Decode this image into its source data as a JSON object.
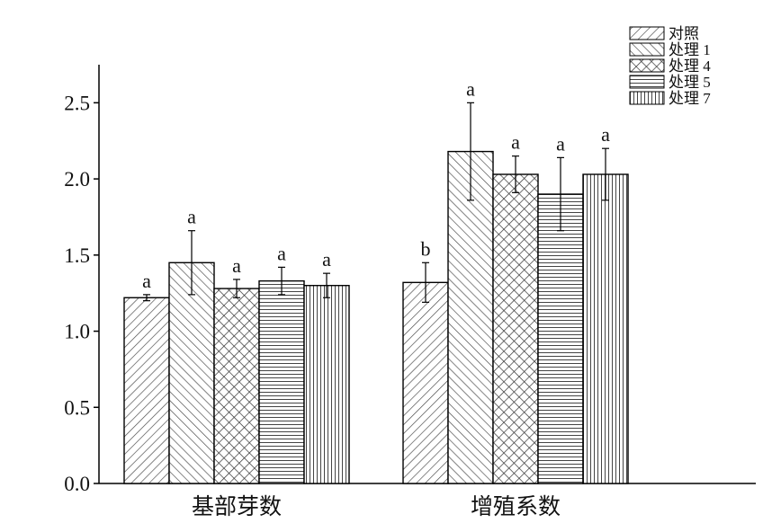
{
  "chart_data": {
    "type": "bar",
    "categories": [
      "基部芽数",
      "增殖系数"
    ],
    "series": [
      {
        "name": "对照",
        "values": [
          1.22,
          1.32
        ],
        "errors": [
          0.02,
          0.13
        ],
        "letters": [
          "a",
          "b"
        ]
      },
      {
        "name": "处理 1",
        "values": [
          1.45,
          2.18
        ],
        "errors": [
          0.21,
          0.32
        ],
        "letters": [
          "a",
          "a"
        ]
      },
      {
        "name": "处理 4",
        "values": [
          1.28,
          2.03
        ],
        "errors": [
          0.06,
          0.12
        ],
        "letters": [
          "a",
          "a"
        ]
      },
      {
        "name": "处理 5",
        "values": [
          1.33,
          1.9
        ],
        "errors": [
          0.09,
          0.24
        ],
        "letters": [
          "a",
          "a"
        ]
      },
      {
        "name": "处理 7",
        "values": [
          1.3,
          2.03
        ],
        "errors": [
          0.08,
          0.17
        ],
        "letters": [
          "a",
          "a"
        ]
      }
    ],
    "ylim": [
      0,
      2.75
    ],
    "yticks": [
      0.0,
      0.5,
      1.0,
      1.5,
      2.0,
      2.5
    ],
    "ytick_labels": [
      "0.0",
      "0.5",
      "1.0",
      "1.5",
      "2.0",
      "2.5"
    ],
    "legend_position": "top-right",
    "grid": false,
    "patterns": [
      "diag-right",
      "diag-left",
      "crosshatch",
      "horizontal",
      "vertical"
    ]
  }
}
